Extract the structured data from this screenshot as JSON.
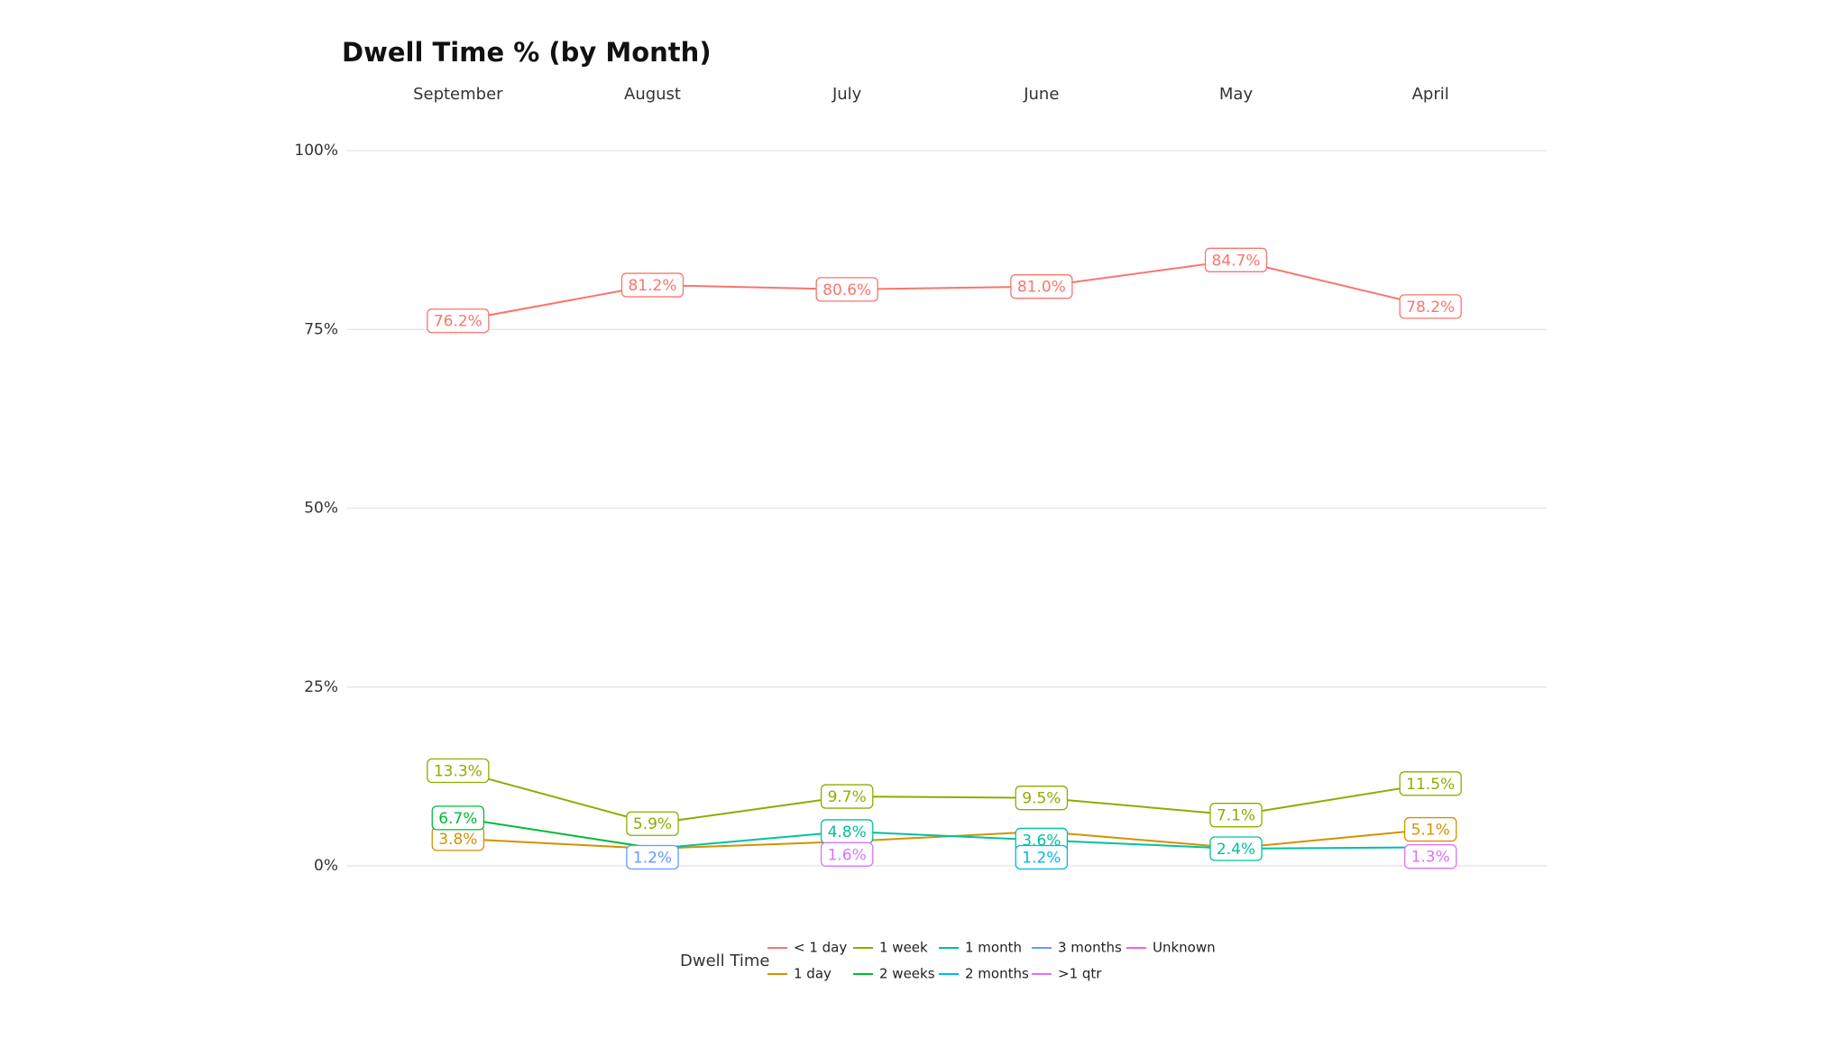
{
  "chart_data": {
    "type": "line",
    "title": "Dwell Time % (by Month)",
    "categories": [
      "September",
      "August",
      "July",
      "June",
      "May",
      "April"
    ],
    "ylim": [
      0,
      100
    ],
    "yticks": [
      {
        "value": 0,
        "label": "0%"
      },
      {
        "value": 25,
        "label": "25%"
      },
      {
        "value": 50,
        "label": "50%"
      },
      {
        "value": 75,
        "label": "75%"
      },
      {
        "value": 100,
        "label": "100%"
      }
    ],
    "grid": true,
    "legend_title": "Dwell Time",
    "legend_position": "bottom",
    "series": [
      {
        "name": "< 1 day",
        "color": "#F8766D",
        "values": [
          76.2,
          81.2,
          80.6,
          81.0,
          84.7,
          78.2
        ],
        "value_labels": [
          "76.2%",
          "81.2%",
          "80.6%",
          "81.0%",
          "84.7%",
          "78.2%"
        ]
      },
      {
        "name": "1 day",
        "color": "#D39200",
        "values": [
          3.8,
          2.4,
          3.4,
          4.8,
          2.5,
          5.1
        ],
        "value_labels": [
          "3.8%",
          null,
          null,
          null,
          null,
          "5.1%"
        ]
      },
      {
        "name": "1 week",
        "color": "#93AA00",
        "values": [
          13.3,
          5.9,
          9.7,
          9.5,
          7.1,
          11.5
        ],
        "value_labels": [
          "13.3%",
          "5.9%",
          "9.7%",
          "9.5%",
          "7.1%",
          "11.5%"
        ]
      },
      {
        "name": "2 weeks",
        "color": "#00BA38",
        "values": [
          6.7,
          2.5,
          null,
          null,
          null,
          null
        ],
        "value_labels": [
          "6.7%",
          null,
          null,
          null,
          null,
          null
        ]
      },
      {
        "name": "1 month",
        "color": "#00C19F",
        "values": [
          null,
          2.4,
          4.8,
          3.6,
          2.4,
          2.6
        ],
        "value_labels": [
          null,
          null,
          "4.8%",
          "3.6%",
          "2.4%",
          null
        ]
      },
      {
        "name": "2 months",
        "color": "#00B9E3",
        "values": [
          null,
          null,
          null,
          1.2,
          null,
          null
        ],
        "value_labels": [
          null,
          null,
          null,
          "1.2%",
          null,
          null
        ]
      },
      {
        "name": "3 months",
        "color": "#619CFF",
        "values": [
          null,
          1.2,
          null,
          null,
          null,
          2.6
        ],
        "value_labels": [
          null,
          "1.2%",
          null,
          null,
          null,
          null
        ]
      },
      {
        "name": ">1 qtr",
        "color": "#DB72FB",
        "values": [
          null,
          null,
          1.6,
          null,
          null,
          1.3
        ],
        "value_labels": [
          null,
          null,
          "1.6%",
          null,
          null,
          "1.3%"
        ]
      },
      {
        "name": "Unknown",
        "color": "#FF61C3",
        "values": [
          null,
          null,
          null,
          null,
          null,
          null
        ],
        "value_labels": [
          null,
          null,
          null,
          null,
          null,
          null
        ]
      }
    ]
  }
}
